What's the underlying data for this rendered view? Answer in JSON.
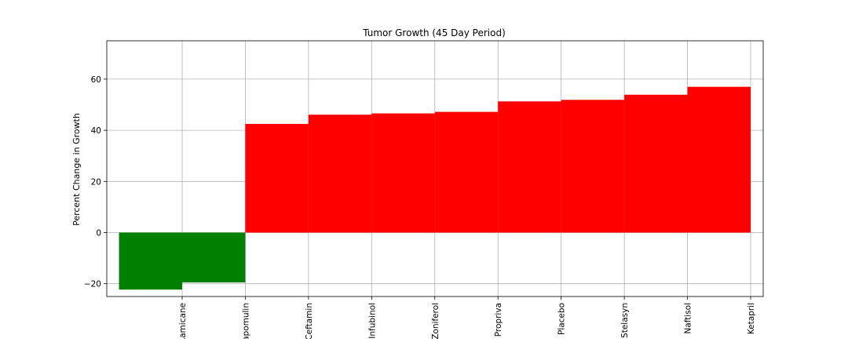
{
  "chart_data": {
    "type": "bar",
    "title": "Tumor Growth (45 Day Period)",
    "xlabel": "",
    "ylabel": "Percent Change in Growth",
    "categories": [
      "Ramicane",
      "Capomulin",
      "Ceftamin",
      "Infubinol",
      "Zoniferol",
      "Propriva",
      "Placebo",
      "Stelasyn",
      "Naftisol",
      "Ketapril"
    ],
    "values": [
      -22.3,
      -19.5,
      42.5,
      46.1,
      46.6,
      47.2,
      51.3,
      51.9,
      53.9,
      57.0
    ],
    "ylim": [
      -25,
      75
    ],
    "yticks": [
      -20,
      0,
      20,
      40,
      60
    ],
    "ytick_labels": [
      "−20",
      "0",
      "20",
      "40",
      "60"
    ],
    "grid": true,
    "legend": "none",
    "colors": {
      "negative": "#008000",
      "positive": "#ff0000",
      "grid": "#b0b0b0",
      "axis": "#000000"
    }
  }
}
